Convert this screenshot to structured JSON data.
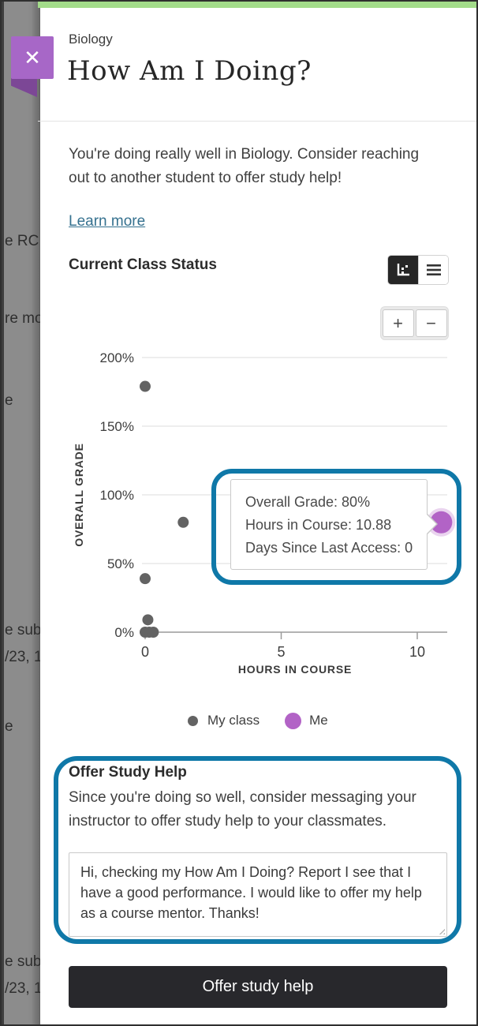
{
  "backdrop": {
    "fragments": [
      "e RC a",
      "re mo",
      "e",
      "e subr",
      "/23, 1",
      "e",
      "e subr",
      "/23, 1"
    ]
  },
  "header": {
    "course": "Biology",
    "title": "How Am I Doing?"
  },
  "icons": {
    "close": "✕",
    "zoom_in": "+",
    "zoom_out": "−"
  },
  "intro": {
    "text": "You're doing really well in Biology. Consider reaching out to another student to offer study help!",
    "link": "Learn more"
  },
  "status_section": {
    "title": "Current Class Status"
  },
  "chart_data": {
    "type": "scatter",
    "title": "Current Class Status",
    "xlabel": "HOURS IN COURSE",
    "ylabel": "OVERALL GRADE",
    "x_ticks": [
      0,
      5,
      10
    ],
    "y_ticks": [
      200,
      150,
      100,
      50,
      0
    ],
    "y_tick_suffix": "%",
    "xlim": [
      0,
      11.6
    ],
    "ylim": [
      0,
      212
    ],
    "grid": true,
    "legend_position": "bottom",
    "series": [
      {
        "name": "My class",
        "color": "#636363",
        "radius": 7,
        "points": [
          [
            0,
            179
          ],
          [
            1.4,
            80
          ],
          [
            0,
            39
          ],
          [
            0.1,
            9
          ],
          [
            0,
            0
          ],
          [
            0.15,
            0
          ],
          [
            0.3,
            0
          ]
        ]
      },
      {
        "name": "Me",
        "color": "#b263c6",
        "radius": 14,
        "points": [
          [
            10.88,
            80
          ]
        ]
      }
    ]
  },
  "tooltip": {
    "lines": [
      "Overall Grade: 80%",
      "Hours in Course: 10.88",
      "Days Since Last Access: 0"
    ]
  },
  "legend": {
    "items": [
      {
        "label": "My class"
      },
      {
        "label": "Me"
      }
    ]
  },
  "study_help": {
    "title": "Offer Study Help",
    "body": "Since you're doing so well, consider messaging your instructor to offer study help to your classmates.",
    "message": "Hi, checking my How Am I Doing? Report I see that I have a good performance. I would like to offer my help as a course mentor. Thanks!",
    "button": "Offer study help"
  },
  "colors": {
    "accent_green": "#a3dc8a",
    "accent_purple": "#a767c7",
    "highlight_blue": "#0f78a8",
    "me_purple": "#b263c6",
    "class_gray": "#636363",
    "button_dark": "#28282c",
    "link_teal": "#35718f"
  }
}
